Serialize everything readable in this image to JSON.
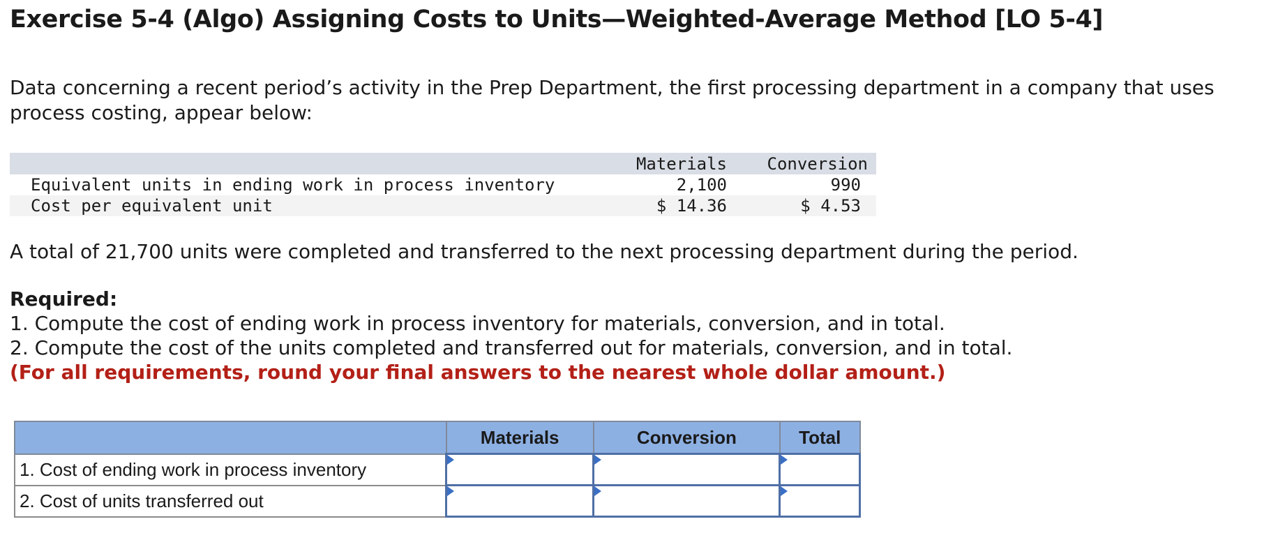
{
  "title": "Exercise 5-4 (Algo) Assigning Costs to Units—Weighted-Average Method [LO 5-4]",
  "intro": "Data concerning a recent period’s activity in the Prep Department, the first processing department in a company that uses process costing, appear below:",
  "data_table": {
    "headers": [
      "Materials",
      "Conversion"
    ],
    "rows": [
      {
        "label": "Equivalent units in ending work in process inventory",
        "materials": "2,100",
        "conversion": "990"
      },
      {
        "label": "Cost per equivalent unit",
        "materials": "$ 14.36",
        "conversion": "$ 4.53"
      }
    ]
  },
  "note": "A total of 21,700 units were completed and transferred to the next processing department during the period.",
  "required": {
    "heading": "Required:",
    "items": [
      "1. Compute the cost of ending work in process inventory for materials, conversion, and in total.",
      "2. Compute the cost of the units completed and transferred out for materials, conversion, and in total."
    ],
    "instruction": "(For all requirements, round your final answers to the nearest whole dollar amount.)"
  },
  "answer_table": {
    "headers": [
      "",
      "Materials",
      "Conversion",
      "Total"
    ],
    "rows": [
      {
        "label": "1. Cost of ending work in process inventory",
        "materials": "",
        "conversion": "",
        "total": ""
      },
      {
        "label": "2. Cost of units transferred out",
        "materials": "",
        "conversion": "",
        "total": ""
      }
    ]
  },
  "colors": {
    "header_fill": "#8db0e3",
    "instruction_red": "#b32017",
    "input_border": "#4f6fa6",
    "data_header_band": "#d9dde5"
  }
}
